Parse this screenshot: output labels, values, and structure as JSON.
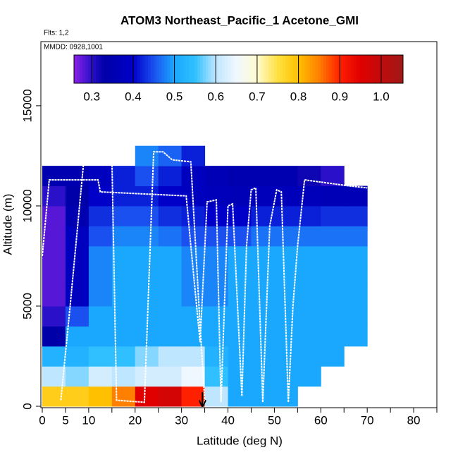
{
  "chart_data": {
    "type": "heatmap",
    "title": "ATOM3 Northeast_Pacific_1 Acetone_GMI",
    "flights_note": "Flts: 1,2",
    "date_note": "MMDD: 0928,1001",
    "xlabel": "Latitude (deg N)",
    "ylabel": "Altitude (m)",
    "xlim": [
      0,
      85
    ],
    "ylim": [
      0,
      18200
    ],
    "xticks": [
      0,
      5,
      10,
      20,
      30,
      40,
      50,
      60,
      70,
      80
    ],
    "xticks_minor": [
      15,
      25,
      35,
      45,
      55,
      65,
      75,
      85
    ],
    "yticks": [
      0,
      5000,
      10000,
      15000
    ],
    "x_edges": [
      0,
      5,
      10,
      15,
      20,
      25,
      30,
      35,
      40,
      45,
      50,
      55,
      60,
      65,
      70
    ],
    "y_edges": [
      0,
      1000,
      2000,
      3000,
      4000,
      5000,
      6000,
      7000,
      8000,
      9000,
      10000,
      11000,
      12000,
      13000
    ],
    "z": [
      [
        0.78,
        0.78,
        0.8,
        0.85,
        0.95,
        0.97,
        0.9,
        0.6,
        0.5,
        0.5,
        0.5,
        null,
        null,
        null
      ],
      [
        0.6,
        0.58,
        0.62,
        0.6,
        0.62,
        0.62,
        0.65,
        0.55,
        0.5,
        0.5,
        0.5,
        0.5,
        null,
        null
      ],
      [
        0.52,
        0.52,
        0.55,
        0.55,
        0.58,
        0.6,
        0.6,
        0.52,
        0.5,
        0.5,
        0.5,
        0.5,
        0.5,
        null
      ],
      [
        0.33,
        0.5,
        0.5,
        0.5,
        0.5,
        0.5,
        0.5,
        0.5,
        0.5,
        0.5,
        0.5,
        0.5,
        0.5,
        0.5
      ],
      [
        0.3,
        0.45,
        0.5,
        0.5,
        0.5,
        0.5,
        0.5,
        0.5,
        0.5,
        0.5,
        0.5,
        0.5,
        0.5,
        0.5
      ],
      [
        0.28,
        0.38,
        0.48,
        0.5,
        0.5,
        0.5,
        0.48,
        0.48,
        0.5,
        0.5,
        0.5,
        0.5,
        0.5,
        0.5
      ],
      [
        0.28,
        0.38,
        0.48,
        0.5,
        0.5,
        0.5,
        0.48,
        0.48,
        0.5,
        0.5,
        0.5,
        0.5,
        0.5,
        0.5
      ],
      [
        0.28,
        0.38,
        0.48,
        0.5,
        0.5,
        0.5,
        0.48,
        0.48,
        0.5,
        0.5,
        0.5,
        0.5,
        0.5,
        0.5
      ],
      [
        0.28,
        0.38,
        0.45,
        0.48,
        0.48,
        0.47,
        0.45,
        0.45,
        0.45,
        0.47,
        0.47,
        0.47,
        0.47,
        0.47
      ],
      [
        0.28,
        0.35,
        0.43,
        0.45,
        0.45,
        0.43,
        0.42,
        0.4,
        0.4,
        0.42,
        0.42,
        0.42,
        0.43,
        0.43
      ],
      [
        0.3,
        0.33,
        0.4,
        0.42,
        0.42,
        0.4,
        0.38,
        0.37,
        0.36,
        0.37,
        0.37,
        0.37,
        0.36,
        0.36
      ],
      [
        0.35,
        0.35,
        0.38,
        0.42,
        0.45,
        0.42,
        0.38,
        0.36,
        0.35,
        0.35,
        0.35,
        0.32,
        0.3,
        null
      ],
      [
        null,
        null,
        null,
        null,
        0.48,
        0.46,
        0.42,
        null,
        null,
        null,
        null,
        null,
        null,
        null
      ]
    ],
    "clim": [
      0.257,
      1.053
    ],
    "cticks": [
      0.3,
      0.4,
      0.5,
      0.6,
      0.7,
      0.8,
      0.9,
      {
        "value": 1,
        "label": "1.0"
      }
    ],
    "colorscale": [
      [
        0.257,
        "#8b1fe8"
      ],
      [
        0.3,
        "#2a10c8"
      ],
      [
        0.33,
        "#0000a8"
      ],
      [
        0.4,
        "#0000c8"
      ],
      [
        0.45,
        "#1a50f0"
      ],
      [
        0.5,
        "#1aa8ff"
      ],
      [
        0.55,
        "#30c0ff"
      ],
      [
        0.6,
        "#bfe6ff"
      ],
      [
        0.65,
        "#f0f8ff"
      ],
      [
        0.7,
        "#fffbd0"
      ],
      [
        0.75,
        "#ffe040"
      ],
      [
        0.8,
        "#ffc000"
      ],
      [
        0.85,
        "#ff8000"
      ],
      [
        0.9,
        "#ff2000"
      ],
      [
        0.95,
        "#e00000"
      ],
      [
        1.053,
        "#a01818"
      ]
    ],
    "track_color": "#ffffff",
    "track": [
      {
        "x": [
          0,
          1.5,
          12,
          12.5,
          31,
          32,
          34,
          35.5,
          37.5,
          38.5,
          40,
          41,
          43,
          44,
          45,
          46,
          47.5,
          49,
          50.5,
          51.5,
          53,
          54,
          55,
          56.5,
          66,
          70
        ],
        "y": [
          7500,
          11300,
          11300,
          10700,
          10500,
          8000,
          3200,
          10200,
          10300,
          200,
          10000,
          10100,
          500,
          8000,
          10800,
          10900,
          200,
          9000,
          10800,
          10700,
          200,
          5000,
          8000,
          11300,
          11000,
          10900
        ]
      },
      {
        "x": [
          4,
          6,
          9,
          15,
          16,
          22,
          24,
          26,
          28,
          32,
          34,
          35,
          34.5
        ],
        "y": [
          300,
          5000,
          12400,
          12300,
          300,
          200,
          12700,
          12700,
          12300,
          12200,
          4000,
          300,
          0
        ]
      }
    ]
  }
}
